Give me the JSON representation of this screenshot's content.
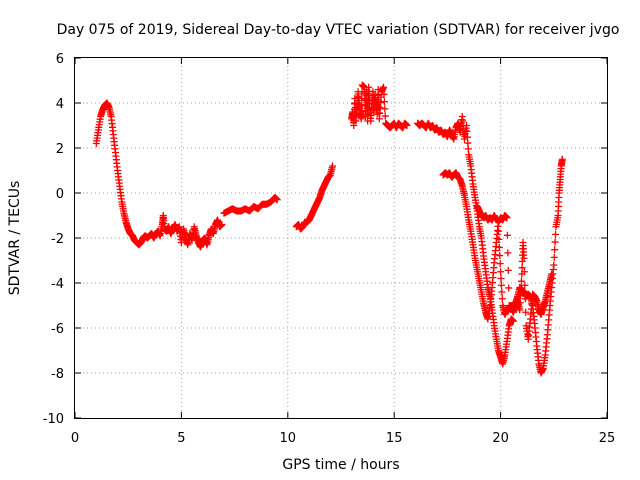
{
  "chart_data": {
    "type": "scatter",
    "title": "Day 075 of 2019, Sidereal Day-to-day VTEC variation (SDTVAR) for receiver jvgo",
    "xlabel": "GPS time / hours",
    "ylabel": "SDTVAR / TECUs",
    "xlim": [
      0,
      25
    ],
    "ylim": [
      -10,
      6
    ],
    "xticks": [
      "0",
      "5",
      "10",
      "15",
      "20",
      "25"
    ],
    "yticks": [
      "-10",
      "-8",
      "-6",
      "-4",
      "-2",
      "0",
      "2",
      "4",
      "6"
    ],
    "grid": true,
    "marker": "+",
    "color": "#ff0000",
    "series": [
      {
        "segments": [
          [
            [
              1.0,
              2.2
            ],
            [
              1.1,
              2.8
            ],
            [
              1.2,
              3.4
            ],
            [
              1.3,
              3.7
            ],
            [
              1.4,
              3.9
            ],
            [
              1.5,
              4.0
            ],
            [
              1.6,
              3.8
            ],
            [
              1.7,
              3.4
            ],
            [
              1.8,
              2.6
            ],
            [
              1.9,
              1.8
            ],
            [
              2.0,
              1.0
            ],
            [
              2.1,
              0.3
            ],
            [
              2.2,
              -0.4
            ],
            [
              2.3,
              -0.9
            ],
            [
              2.4,
              -1.3
            ],
            [
              2.5,
              -1.6
            ],
            [
              2.6,
              -1.8
            ],
            [
              2.7,
              -1.9
            ],
            [
              2.8,
              -2.1
            ],
            [
              2.9,
              -2.2
            ],
            [
              3.0,
              -2.3
            ],
            [
              3.1,
              -2.2
            ],
            [
              3.2,
              -2.0
            ],
            [
              3.3,
              -1.9
            ],
            [
              3.4,
              -2.0
            ],
            [
              3.5,
              -1.9
            ],
            [
              3.6,
              -1.8
            ],
            [
              3.7,
              -2.0
            ],
            [
              3.8,
              -1.8
            ],
            [
              3.9,
              -1.7
            ],
            [
              4.0,
              -1.9
            ],
            [
              4.1,
              -1.4
            ],
            [
              4.15,
              -1.0
            ],
            [
              4.2,
              -1.6
            ],
            [
              4.3,
              -1.7
            ],
            [
              4.4,
              -1.5
            ],
            [
              4.5,
              -1.8
            ],
            [
              4.6,
              -1.6
            ],
            [
              4.7,
              -1.4
            ],
            [
              4.8,
              -1.7
            ],
            [
              4.9,
              -1.5
            ],
            [
              5.0,
              -2.2
            ],
            [
              5.1,
              -1.6
            ],
            [
              5.2,
              -2.0
            ],
            [
              5.3,
              -2.3
            ],
            [
              5.4,
              -1.8
            ],
            [
              5.5,
              -2.1
            ],
            [
              5.6,
              -1.5
            ],
            [
              5.7,
              -1.9
            ],
            [
              5.8,
              -2.2
            ],
            [
              5.9,
              -2.4
            ],
            [
              6.0,
              -2.1
            ],
            [
              6.1,
              -2.0
            ],
            [
              6.2,
              -2.3
            ],
            [
              6.3,
              -1.9
            ],
            [
              6.4,
              -1.6
            ],
            [
              6.5,
              -1.8
            ],
            [
              6.6,
              -1.4
            ],
            [
              6.7,
              -1.2
            ],
            [
              6.8,
              -1.5
            ],
            [
              6.9,
              -1.4
            ]
          ],
          [
            [
              7.0,
              -0.9
            ],
            [
              7.2,
              -0.8
            ],
            [
              7.4,
              -0.7
            ],
            [
              7.6,
              -0.8
            ],
            [
              7.8,
              -0.8
            ],
            [
              8.0,
              -0.7
            ],
            [
              8.2,
              -0.8
            ],
            [
              8.4,
              -0.6
            ],
            [
              8.6,
              -0.7
            ],
            [
              8.8,
              -0.5
            ],
            [
              9.0,
              -0.5
            ],
            [
              9.2,
              -0.4
            ],
            [
              9.3,
              -0.3
            ],
            [
              9.4,
              -0.2
            ],
            [
              9.5,
              -0.3
            ]
          ],
          [
            [
              10.4,
              -1.5
            ],
            [
              10.5,
              -1.4
            ],
            [
              10.6,
              -1.6
            ],
            [
              10.7,
              -1.5
            ],
            [
              10.8,
              -1.3
            ],
            [
              10.9,
              -1.3
            ],
            [
              11.0,
              -1.2
            ],
            [
              11.1,
              -1.0
            ],
            [
              11.2,
              -0.8
            ],
            [
              11.3,
              -0.6
            ],
            [
              11.4,
              -0.4
            ],
            [
              11.5,
              -0.2
            ],
            [
              11.6,
              0.1
            ],
            [
              11.7,
              0.3
            ],
            [
              11.8,
              0.5
            ],
            [
              11.9,
              0.7
            ],
            [
              12.0,
              0.8
            ],
            [
              12.1,
              1.2
            ]
          ],
          [
            [
              13.0,
              3.3
            ],
            [
              13.05,
              3.6
            ],
            [
              13.1,
              3.0
            ],
            [
              13.15,
              4.2
            ],
            [
              13.2,
              3.2
            ],
            [
              13.3,
              4.5
            ],
            [
              13.35,
              4.0
            ],
            [
              13.4,
              3.6
            ],
            [
              13.45,
              3.3
            ],
            [
              13.5,
              4.8
            ],
            [
              13.6,
              4.7
            ],
            [
              13.65,
              3.4
            ],
            [
              13.7,
              4.6
            ],
            [
              13.75,
              3.2
            ],
            [
              13.8,
              4.7
            ],
            [
              13.85,
              3.8
            ],
            [
              13.9,
              3.2
            ],
            [
              14.0,
              4.5
            ],
            [
              14.05,
              3.6
            ],
            [
              14.1,
              4.4
            ],
            [
              14.2,
              3.5
            ],
            [
              14.25,
              4.6
            ],
            [
              14.3,
              3.3
            ],
            [
              14.4,
              4.5
            ],
            [
              14.5,
              4.7
            ],
            [
              14.6,
              3.1
            ],
            [
              14.7,
              3.0
            ],
            [
              14.8,
              2.9
            ],
            [
              14.9,
              3.0
            ],
            [
              15.0,
              3.1
            ],
            [
              15.1,
              2.9
            ],
            [
              15.2,
              3.1
            ],
            [
              15.3,
              3.0
            ],
            [
              15.4,
              2.9
            ],
            [
              15.5,
              3.1
            ],
            [
              15.6,
              3.0
            ]
          ],
          [
            [
              16.1,
              3.1
            ],
            [
              16.2,
              3.0
            ],
            [
              16.3,
              3.1
            ],
            [
              16.4,
              3.0
            ],
            [
              16.5,
              2.9
            ],
            [
              16.6,
              3.1
            ],
            [
              16.7,
              2.9
            ],
            [
              16.8,
              3.0
            ],
            [
              16.9,
              2.8
            ],
            [
              17.0,
              2.9
            ],
            [
              17.1,
              2.7
            ],
            [
              17.2,
              2.8
            ],
            [
              17.3,
              2.6
            ],
            [
              17.4,
              2.7
            ],
            [
              17.5,
              2.5
            ],
            [
              17.6,
              2.8
            ],
            [
              17.7,
              2.6
            ],
            [
              17.8,
              2.4
            ],
            [
              17.9,
              2.9
            ],
            [
              18.0,
              3.1
            ],
            [
              18.1,
              2.7
            ],
            [
              18.2,
              3.4
            ],
            [
              18.3,
              2.4
            ],
            [
              18.4,
              3.0
            ],
            [
              18.5,
              1.7
            ],
            [
              18.6,
              1.2
            ],
            [
              18.7,
              0.4
            ],
            [
              18.8,
              -0.2
            ],
            [
              18.9,
              -0.8
            ],
            [
              19.0,
              -1.5
            ],
            [
              19.1,
              -2.0
            ],
            [
              19.2,
              -2.8
            ],
            [
              19.3,
              -3.5
            ],
            [
              19.4,
              -4.2
            ],
            [
              19.5,
              -4.6
            ],
            [
              19.6,
              -5.2
            ],
            [
              19.7,
              -5.9
            ],
            [
              19.8,
              -6.5
            ],
            [
              19.9,
              -7.0
            ],
            [
              20.0,
              -7.3
            ],
            [
              20.1,
              -7.6
            ],
            [
              20.2,
              -7.2
            ],
            [
              20.3,
              -6.6
            ],
            [
              20.4,
              -5.9
            ],
            [
              20.5,
              -5.6
            ],
            [
              20.6,
              -5.7
            ]
          ],
          [
            [
              17.3,
              0.8
            ],
            [
              17.4,
              0.9
            ],
            [
              17.5,
              0.8
            ],
            [
              17.6,
              0.9
            ],
            [
              17.7,
              0.7
            ],
            [
              17.8,
              0.8
            ],
            [
              17.9,
              0.9
            ],
            [
              18.0,
              0.7
            ],
            [
              18.1,
              0.6
            ],
            [
              18.2,
              0.3
            ],
            [
              18.3,
              -0.1
            ],
            [
              18.4,
              -0.6
            ],
            [
              18.5,
              -1.2
            ],
            [
              18.6,
              -1.7
            ],
            [
              18.7,
              -2.3
            ],
            [
              18.8,
              -2.9
            ],
            [
              18.9,
              -3.4
            ],
            [
              19.0,
              -3.9
            ],
            [
              19.1,
              -4.4
            ],
            [
              19.2,
              -4.9
            ],
            [
              19.3,
              -5.3
            ],
            [
              19.4,
              -5.6
            ],
            [
              19.5,
              -5.0
            ],
            [
              19.6,
              -4.2
            ],
            [
              19.7,
              -3.1
            ],
            [
              19.8,
              -2.2
            ],
            [
              19.9,
              -1.3
            ],
            [
              20.0,
              -1.1
            ],
            [
              20.1,
              -1.2
            ],
            [
              20.2,
              -1.0
            ],
            [
              20.3,
              -1.1
            ],
            [
              20.4,
              -5.0
            ],
            [
              20.5,
              -5.1
            ],
            [
              20.6,
              -5.3
            ],
            [
              20.7,
              -5.0
            ],
            [
              20.8,
              -4.8
            ],
            [
              20.9,
              -5.2
            ],
            [
              21.0,
              -3.6
            ],
            [
              21.05,
              -2.2
            ],
            [
              21.1,
              -2.9
            ],
            [
              21.2,
              -5.9
            ],
            [
              21.3,
              -6.5
            ],
            [
              21.4,
              -5.6
            ],
            [
              21.5,
              -4.5
            ],
            [
              21.6,
              -4.6
            ],
            [
              21.7,
              -4.8
            ],
            [
              21.8,
              -5.2
            ],
            [
              21.9,
              -5.4
            ],
            [
              22.0,
              -5.1
            ],
            [
              22.1,
              -4.8
            ],
            [
              22.2,
              -4.4
            ],
            [
              22.3,
              -4.0
            ],
            [
              22.4,
              -3.6
            ]
          ],
          [
            [
              19.9,
              -1.7
            ],
            [
              20.0,
              -3.5
            ],
            [
              20.1,
              -5.0
            ],
            [
              20.2,
              -5.4
            ],
            [
              20.3,
              -5.2
            ],
            [
              20.4,
              -5.1
            ],
            [
              20.5,
              -5.0
            ],
            [
              20.6,
              -5.0
            ],
            [
              20.7,
              -4.9
            ],
            [
              20.8,
              -4.6
            ],
            [
              20.9,
              -4.2
            ],
            [
              21.0,
              -4.3
            ],
            [
              21.1,
              -4.4
            ],
            [
              21.2,
              -4.6
            ],
            [
              21.3,
              -4.5
            ],
            [
              21.4,
              -4.6
            ],
            [
              21.5,
              -5.0
            ],
            [
              21.6,
              -5.8
            ],
            [
              21.7,
              -6.8
            ],
            [
              21.8,
              -7.6
            ],
            [
              21.9,
              -8.0
            ],
            [
              22.0,
              -7.8
            ],
            [
              22.1,
              -7.2
            ],
            [
              22.2,
              -6.3
            ],
            [
              22.3,
              -5.2
            ],
            [
              22.4,
              -4.2
            ],
            [
              22.5,
              -3.2
            ],
            [
              22.6,
              -1.5
            ],
            [
              22.7,
              -1.0
            ],
            [
              22.75,
              0.0
            ],
            [
              22.8,
              0.6
            ],
            [
              22.85,
              1.2
            ],
            [
              22.9,
              1.5
            ]
          ],
          [
            [
              18.9,
              -0.6
            ],
            [
              19.0,
              -0.8
            ],
            [
              19.1,
              -1.0
            ],
            [
              19.2,
              -1.1
            ],
            [
              19.3,
              -1.0
            ],
            [
              19.4,
              -1.2
            ],
            [
              19.5,
              -1.1
            ],
            [
              19.6,
              -1.2
            ],
            [
              19.7,
              -1.0
            ],
            [
              19.8,
              -1.2
            ]
          ]
        ]
      }
    ]
  }
}
